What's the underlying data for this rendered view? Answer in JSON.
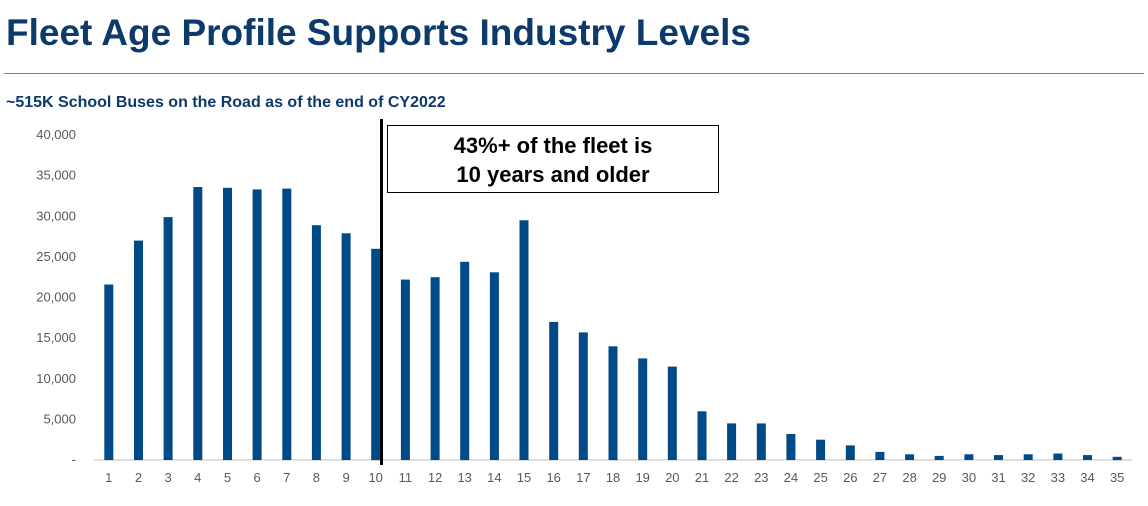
{
  "title": "Fleet Age Profile Supports Industry Levels",
  "subtitle": "~515K School Buses on the Road as of the end of CY2022",
  "callout": {
    "line1": "43%+ of the fleet is",
    "line2": "10 years and older"
  },
  "colors": {
    "bar": "#004b87",
    "title": "#0b3a6b"
  },
  "chart_data": {
    "type": "bar",
    "title": "~515K School Buses on the Road as of the end of CY2022",
    "xlabel": "",
    "ylabel": "",
    "ylim": [
      0,
      40000
    ],
    "yticks": [
      0,
      5000,
      10000,
      15000,
      20000,
      25000,
      30000,
      35000,
      40000
    ],
    "ytick_labels": [
      "-",
      "5,000",
      "10,000",
      "15,000",
      "20,000",
      "25,000",
      "30,000",
      "35,000",
      "40,000"
    ],
    "categories": [
      "1",
      "2",
      "3",
      "4",
      "5",
      "6",
      "7",
      "8",
      "9",
      "10",
      "11",
      "12",
      "13",
      "14",
      "15",
      "16",
      "17",
      "18",
      "19",
      "20",
      "21",
      "22",
      "23",
      "24",
      "25",
      "26",
      "27",
      "28",
      "29",
      "30",
      "31",
      "32",
      "33",
      "34",
      "35"
    ],
    "values": [
      21600,
      27000,
      29900,
      33600,
      33500,
      33300,
      33400,
      28900,
      27900,
      26000,
      22200,
      22500,
      24400,
      23100,
      29500,
      17000,
      15700,
      14000,
      12500,
      11500,
      6000,
      4500,
      4500,
      3200,
      2500,
      1800,
      1000,
      700,
      500,
      700,
      600,
      700,
      800,
      600,
      400
    ],
    "annotation": "43%+ of the fleet is 10 years and older",
    "grid": false,
    "legend": "none"
  }
}
